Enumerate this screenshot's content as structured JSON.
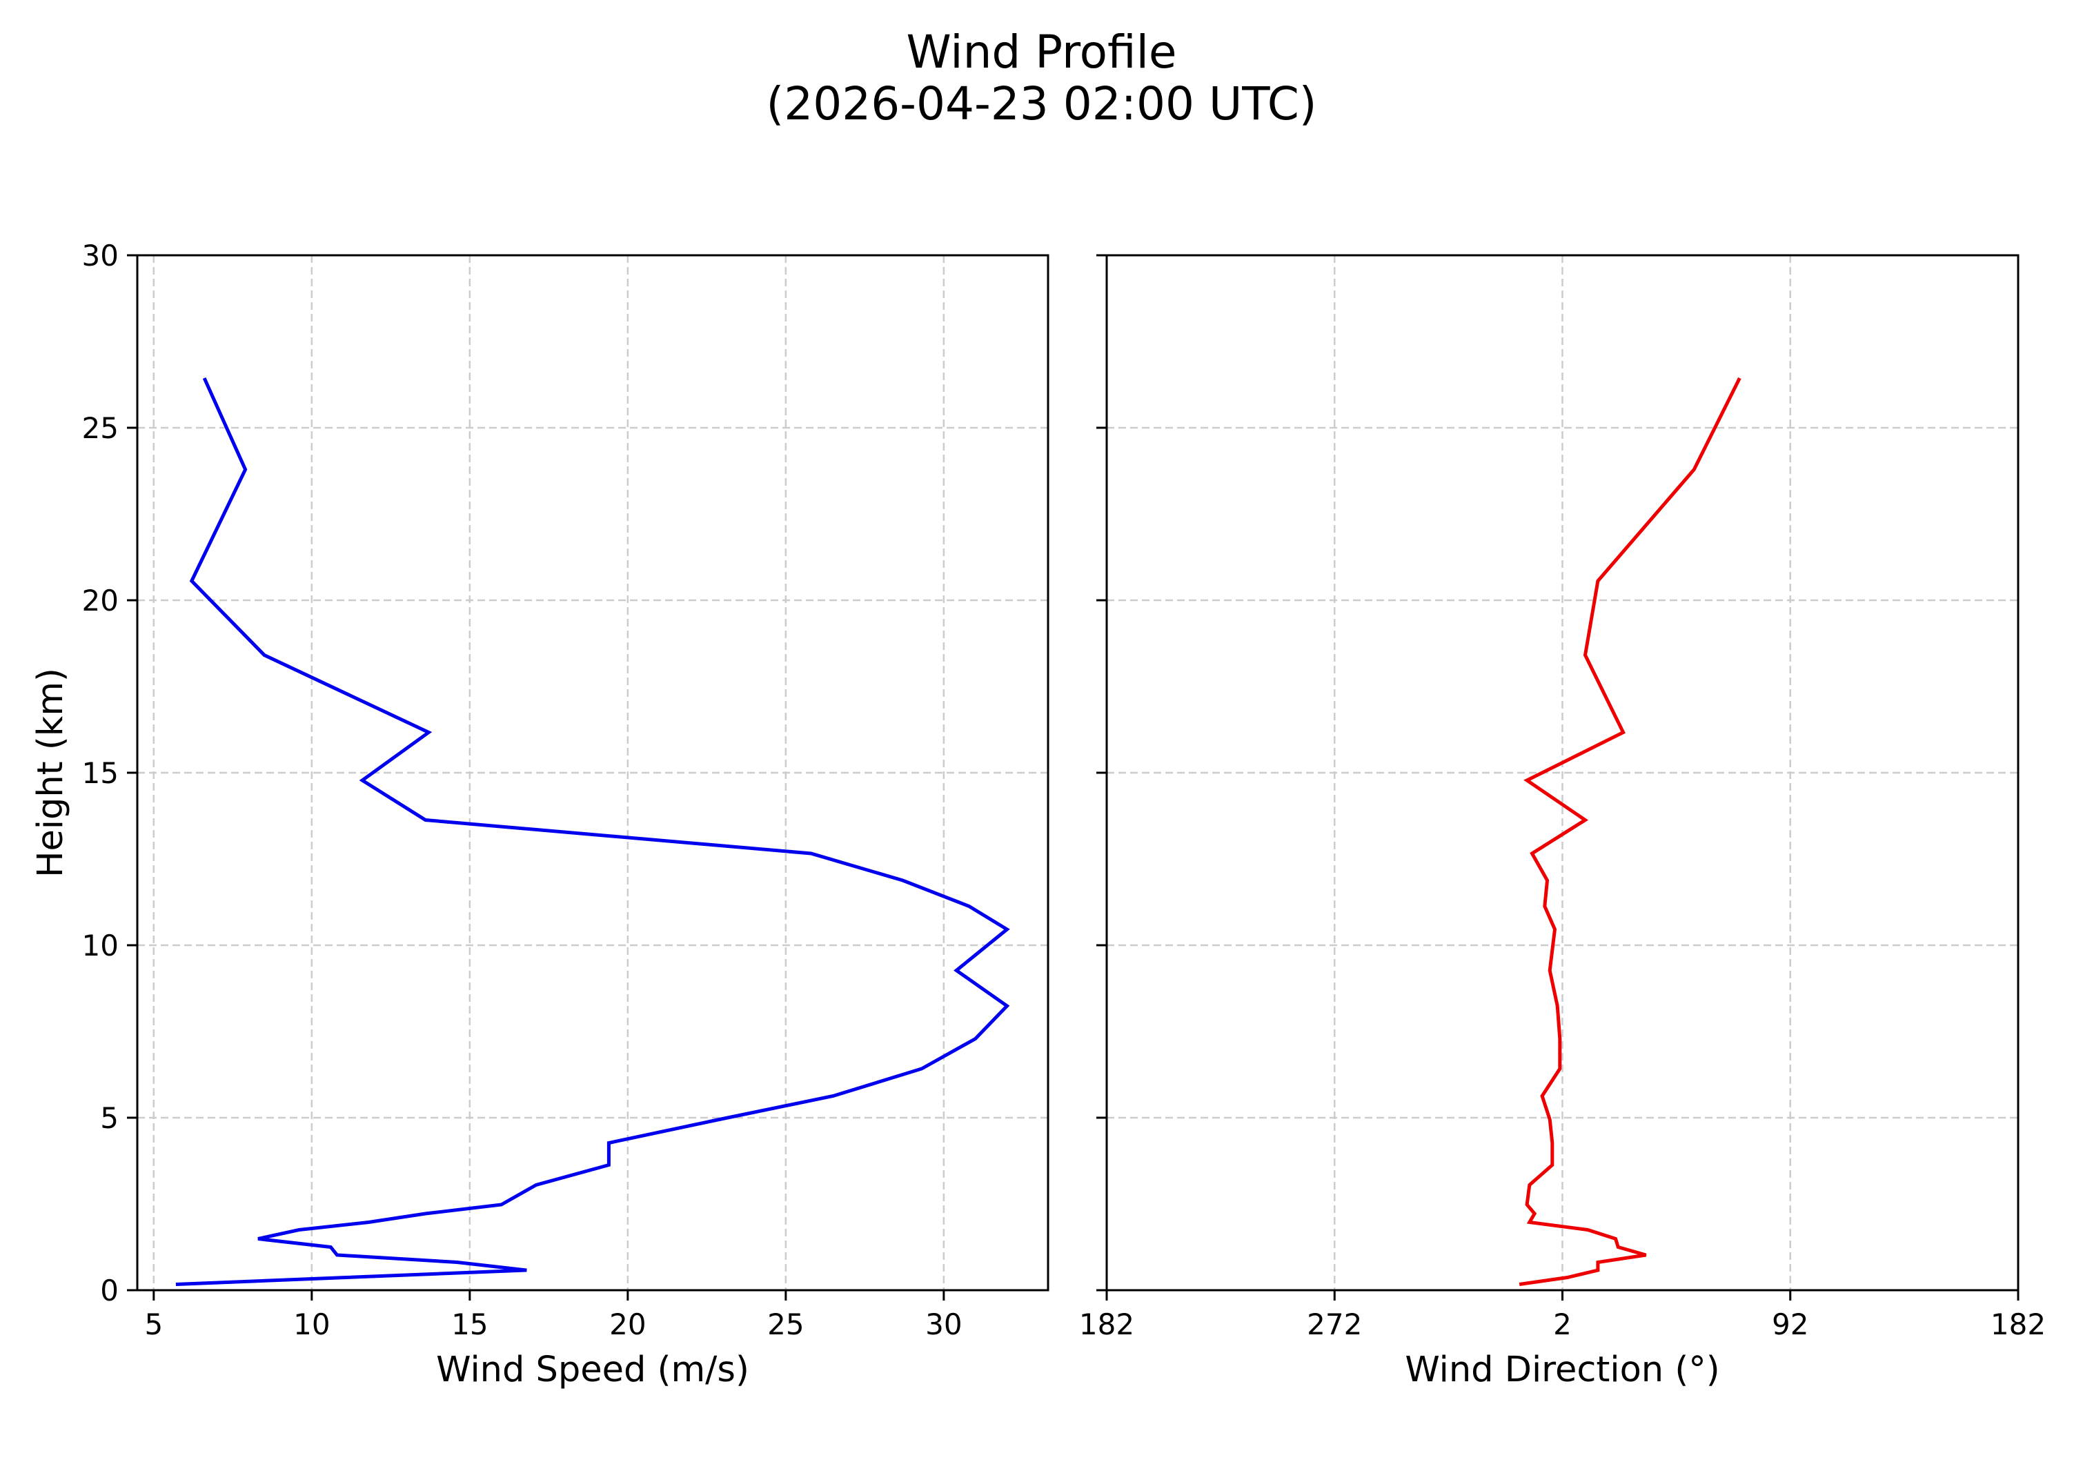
{
  "figure": {
    "title_line1": "Wind Profile",
    "title_line2": "(2026-04-23 02:00 UTC)",
    "background": "#ffffff"
  },
  "style": {
    "speed_color": "#0000ee",
    "direction_color": "#ee0000",
    "grid_color": "#cccccc",
    "spine_color": "#000000"
  },
  "chart_data": [
    {
      "type": "line",
      "title": "Wind Profile (2026-04-23 02:00 UTC)",
      "panel": "left",
      "xlabel": "Wind Speed (m/s)",
      "ylabel": "Height (km)",
      "xlim": [
        4.48,
        33.3
      ],
      "ylim": [
        0,
        30
      ],
      "xticks": [
        5,
        10,
        15,
        20,
        25,
        30
      ],
      "xtick_labels": [
        "5",
        "10",
        "15",
        "20",
        "25",
        "30"
      ],
      "yticks": [
        0,
        5,
        10,
        15,
        20,
        25,
        30
      ],
      "ytick_labels": [
        "0",
        "5",
        "10",
        "15",
        "20",
        "25",
        "30"
      ],
      "grid": true,
      "series": [
        {
          "name": "Wind Speed",
          "color": "#0000ee",
          "y": [
            0.17,
            0.37,
            0.58,
            0.81,
            1.02,
            1.25,
            1.49,
            1.75,
            1.97,
            2.22,
            2.48,
            3.05,
            3.63,
            4.27,
            4.95,
            5.63,
            6.42,
            7.29,
            8.24,
            9.27,
            10.46,
            11.13,
            11.88,
            12.66,
            13.63,
            14.78,
            16.17,
            18.41,
            20.56,
            23.79,
            26.44
          ],
          "x": [
            5.7,
            11.1,
            16.8,
            14.6,
            10.8,
            10.6,
            8.3,
            9.6,
            11.8,
            13.6,
            16.0,
            17.1,
            19.4,
            19.4,
            22.9,
            26.5,
            29.3,
            31.0,
            32.0,
            30.4,
            32.0,
            30.8,
            28.7,
            25.8,
            13.6,
            11.6,
            13.7,
            8.5,
            6.2,
            7.9,
            6.6
          ]
        }
      ]
    },
    {
      "type": "line",
      "panel": "right",
      "xlabel": "Wind Direction (°)",
      "ylabel": "",
      "xlim": [
        182,
        542
      ],
      "ylim": [
        0,
        30
      ],
      "xticks": [
        182,
        272,
        362,
        452,
        542
      ],
      "xtick_labels": [
        "182",
        "272",
        "2",
        "92",
        "182"
      ],
      "yticks": [
        0,
        5,
        10,
        15,
        20,
        25,
        30
      ],
      "ytick_labels": [],
      "grid": true,
      "series": [
        {
          "name": "Wind Direction",
          "color": "#ee0000",
          "y": [
            0.17,
            0.37,
            0.58,
            0.81,
            1.02,
            1.25,
            1.49,
            1.75,
            1.97,
            2.22,
            2.48,
            3.05,
            3.63,
            4.27,
            4.95,
            5.63,
            6.42,
            7.29,
            8.24,
            9.27,
            10.46,
            11.13,
            11.88,
            12.66,
            13.63,
            14.78,
            16.17,
            18.41,
            20.56,
            23.79,
            26.44
          ],
          "x": [
            345,
            4,
            16,
            16,
            35,
            24,
            23,
            12,
            349,
            351,
            348,
            349,
            358,
            358,
            357,
            354,
            1,
            1,
            0,
            357,
            359,
            355,
            356,
            350,
            11,
            348,
            26,
            11,
            16,
            54,
            72
          ],
          "x_unwrapped": [
            345,
            364,
            376,
            376,
            395,
            384,
            383,
            372,
            349,
            351,
            348,
            349,
            358,
            358,
            357,
            354,
            361,
            361,
            360,
            357,
            359,
            355,
            356,
            350,
            371,
            348,
            386,
            371,
            376,
            414,
            432
          ]
        }
      ]
    }
  ],
  "axes": {
    "left": {
      "xlabel": "Wind Speed (m/s)",
      "ylabel": "Height (km)",
      "xtick_labels": [
        "5",
        "10",
        "15",
        "20",
        "25",
        "30"
      ],
      "ytick_labels": [
        "0",
        "5",
        "10",
        "15",
        "20",
        "25",
        "30"
      ]
    },
    "right": {
      "xlabel": "Wind Direction (°)",
      "xtick_labels": [
        "182",
        "272",
        "2",
        "92",
        "182"
      ]
    }
  }
}
